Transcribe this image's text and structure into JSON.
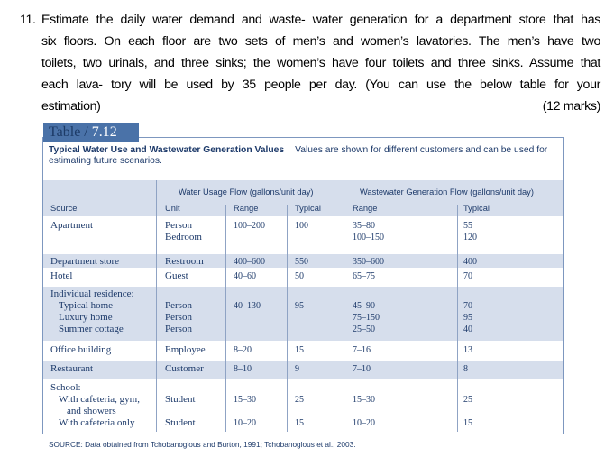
{
  "question": {
    "number": "11.",
    "lines": [
      "Estimate the daily water demand and waste- water generation for a department store that has",
      "six floors. On each floor are two sets of men’s and women’s lavatories. The men’s have two",
      "toilets, two urinals, and three sinks; the women’s have four toilets and three sinks. Assume that",
      "each lava- tory will be used by 35 people per day. (You can use the below table for your"
    ],
    "last_line": "estimation)",
    "marks": "(12 marks)"
  },
  "table": {
    "label_prefix": "Table / ",
    "label_number": "7.12",
    "title": "Typical Water Use and Wastewater Generation Values",
    "description": "Values are shown for different customers and can be used for estimating future scenarios.",
    "group_headers": [
      "Water Usage Flow (gallons/unit day)",
      "Wastewater Generation Flow (gallons/unit day)"
    ],
    "columns": [
      "Source",
      "Unit",
      "Range",
      "Typical",
      "Range",
      "Typical"
    ],
    "rows": [
      {
        "source": [
          "Apartment"
        ],
        "unit": [
          "Person",
          "Bedroom"
        ],
        "range": [
          "100–200"
        ],
        "typical": [
          "100"
        ],
        "ww_range": [
          "35–80",
          "100–150"
        ],
        "ww_typical": [
          "55",
          "120"
        ]
      },
      {
        "source": [
          "Department store"
        ],
        "unit": [
          "Restroom"
        ],
        "range": [
          "400–600"
        ],
        "typical": [
          "550"
        ],
        "ww_range": [
          "350–600"
        ],
        "ww_typical": [
          "400"
        ]
      },
      {
        "source": [
          "Hotel"
        ],
        "unit": [
          "Guest"
        ],
        "range": [
          "40–60"
        ],
        "typical": [
          "50"
        ],
        "ww_range": [
          "65–75"
        ],
        "ww_typical": [
          "70"
        ]
      },
      {
        "source": [
          "Individual residence:",
          "Typical home",
          "Luxury home",
          "Summer cottage"
        ],
        "unit": [
          "",
          "Person",
          "Person",
          "Person"
        ],
        "range": [
          "",
          "40–130"
        ],
        "typical": [
          "",
          "95"
        ],
        "ww_range": [
          "",
          "45–90",
          "75–150",
          "25–50"
        ],
        "ww_typical": [
          "",
          "70",
          "95",
          "40"
        ]
      },
      {
        "source": [
          "Office building"
        ],
        "unit": [
          "Employee"
        ],
        "range": [
          "8–20"
        ],
        "typical": [
          "15"
        ],
        "ww_range": [
          "7–16"
        ],
        "ww_typical": [
          "13"
        ]
      },
      {
        "source": [
          "Restaurant"
        ],
        "unit": [
          "Customer"
        ],
        "range": [
          "8–10"
        ],
        "typical": [
          "9"
        ],
        "ww_range": [
          "7–10"
        ],
        "ww_typical": [
          "8"
        ]
      },
      {
        "source": [
          "School:",
          "With cafeteria, gym,",
          "and showers",
          "With cafeteria only"
        ],
        "unit": [
          "",
          "Student",
          "",
          "Student"
        ],
        "range": [
          "",
          "15–30",
          "",
          "10–20"
        ],
        "typical": [
          "",
          "25",
          "",
          "15"
        ],
        "ww_range": [
          "",
          "15–30",
          "",
          "10–20"
        ],
        "ww_typical": [
          "",
          "25",
          "",
          "15"
        ]
      }
    ],
    "source_note": "SOURCE: Data obtained from Tchobanoglous and Burton, 1991; Tchobanoglous et al., 2003.",
    "colors": {
      "band": "#d6deec",
      "label_tab": "#4a72a8",
      "text": "#1d3a6a"
    }
  }
}
